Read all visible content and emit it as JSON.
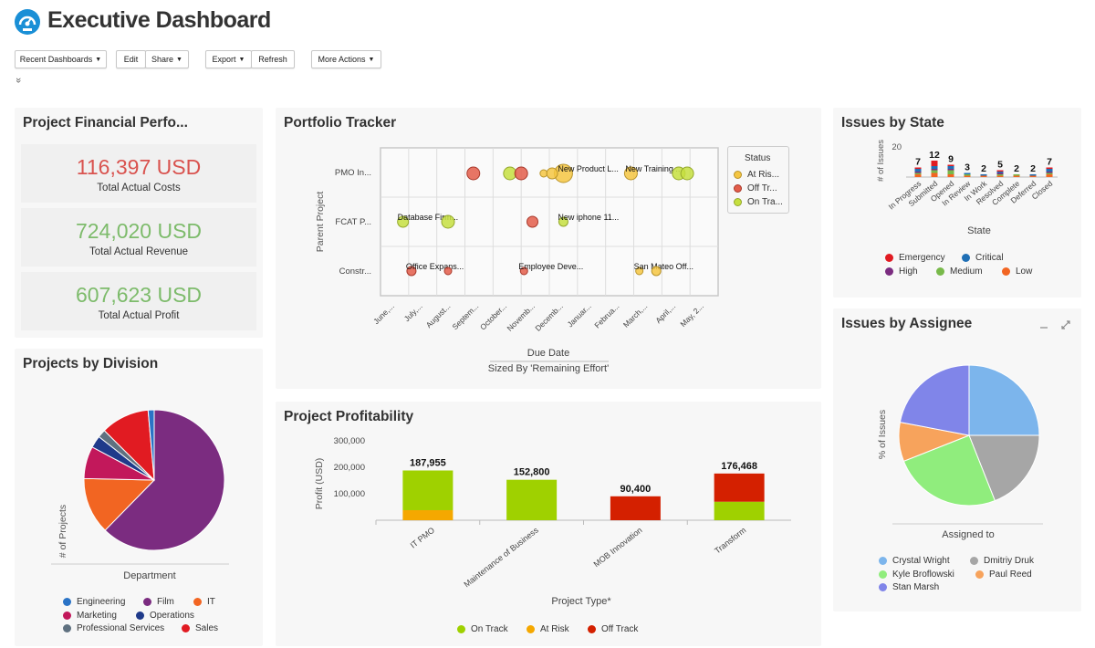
{
  "header": {
    "title": "Executive Dashboard",
    "icon": "gauge-icon"
  },
  "toolbar": {
    "recent": "Recent Dashboards",
    "edit": "Edit",
    "share": "Share",
    "export": "Export",
    "refresh": "Refresh",
    "more": "More Actions",
    "caret": "▼",
    "collapse": "»"
  },
  "financial": {
    "title": "Project Financial Perfo...",
    "kpis": [
      {
        "value": "116,397 USD",
        "label": "Total Actual Costs",
        "color": "#d9534f"
      },
      {
        "value": "724,020 USD",
        "label": "Total Actual Revenue",
        "color": "#7dbb6b"
      },
      {
        "value": "607,623 USD",
        "label": "Total Actual Profit",
        "color": "#7dbb6b"
      }
    ]
  },
  "division": {
    "title": "Projects by Division",
    "ylabel": "# of Projects",
    "xlabel": "Department",
    "legend": [
      {
        "label": "Engineering",
        "color": "#2a73c6"
      },
      {
        "label": "Film",
        "color": "#7b2c80"
      },
      {
        "label": "IT",
        "color": "#f26522"
      },
      {
        "label": "Marketing",
        "color": "#c2185b"
      },
      {
        "label": "Operations",
        "color": "#1f3a8a"
      },
      {
        "label": "Professional Services",
        "color": "#5f7180"
      },
      {
        "label": "Sales",
        "color": "#e11b22"
      }
    ]
  },
  "portfolio": {
    "title": "Portfolio Tracker",
    "ylabel": "Parent Project",
    "xlabel": "Due Date",
    "sizedby": "Sized By 'Remaining Effort'",
    "rows": [
      "PMO In...",
      "FCAT P...",
      "Constr..."
    ],
    "months": [
      "June,...",
      "July,...",
      "August...",
      "Septem...",
      "October...",
      "Novemb...",
      "Decemb...",
      "Januar...",
      "Februa...",
      "March,...",
      "April,...",
      "May, 2..."
    ],
    "labels": [
      "New Product L...",
      "New Training ...",
      "Database Firm...",
      "New iphone 11...",
      "Office Expans...",
      "Employee Deve...",
      "San Mateo Off..."
    ],
    "status": {
      "title": "Status",
      "items": [
        {
          "label": "At Ris...",
          "color": "#f4c542"
        },
        {
          "label": "Off Tr...",
          "color": "#e35d4a"
        },
        {
          "label": "On Tra...",
          "color": "#c5df3f"
        }
      ]
    }
  },
  "profit": {
    "title": "Project Profitability",
    "ylabel": "Profit (USD)",
    "xlabel": "Project Type*",
    "legend": [
      {
        "label": "On Track",
        "color": "#9fd100"
      },
      {
        "label": "At Risk",
        "color": "#f5a800"
      },
      {
        "label": "Off Track",
        "color": "#d42000"
      }
    ]
  },
  "state": {
    "title": "Issues by State",
    "ylabel": "# of Issues",
    "xlabel": "State",
    "ytick": "20",
    "legend": [
      {
        "label": "Emergency",
        "color": "#e11b22"
      },
      {
        "label": "Critical",
        "color": "#1f6fb5"
      },
      {
        "label": "High",
        "color": "#7b2c80"
      },
      {
        "label": "Medium",
        "color": "#78b94a"
      },
      {
        "label": "Low",
        "color": "#f26522"
      }
    ]
  },
  "assignee": {
    "title": "Issues by Assignee",
    "ylabel": "% of Issues",
    "xlabel": "Assigned to",
    "legend": [
      {
        "label": "Crystal Wright",
        "color": "#7cb5ec"
      },
      {
        "label": "Dmitriy Druk",
        "color": "#a6a6a6"
      },
      {
        "label": "Kyle Broflowski",
        "color": "#90ed7d"
      },
      {
        "label": "Paul Reed",
        "color": "#f7a35c"
      },
      {
        "label": "Stan Marsh",
        "color": "#8085e9"
      }
    ]
  },
  "chart_data": [
    {
      "type": "pie",
      "title": "Projects by Division",
      "categories": [
        "Film",
        "IT",
        "Marketing",
        "Operations",
        "Professional Services",
        "Sales",
        "Engineering"
      ],
      "values": [
        67,
        14,
        8,
        3,
        2,
        12,
        1.5
      ],
      "colors": [
        "#7b2c80",
        "#f26522",
        "#c2185b",
        "#1f3a8a",
        "#5f7180",
        "#e11b22",
        "#2a73c6"
      ]
    },
    {
      "type": "scatter",
      "title": "Portfolio Tracker",
      "x_categories": [
        "June,...",
        "July,...",
        "August...",
        "Septem...",
        "October...",
        "Novemb...",
        "Decemb...",
        "Januar...",
        "Februa...",
        "March,...",
        "April,...",
        "May, 2..."
      ],
      "y_categories": [
        "PMO In...",
        "FCAT P...",
        "Constr..."
      ],
      "points": [
        {
          "x": 3.3,
          "y": 0,
          "size": 7,
          "status": "Off Track",
          "label": ""
        },
        {
          "x": 4.6,
          "y": 0,
          "size": 7,
          "status": "On Track",
          "label": ""
        },
        {
          "x": 5.0,
          "y": 0,
          "size": 7,
          "status": "Off Track",
          "label": ""
        },
        {
          "x": 5.8,
          "y": 0,
          "size": 4,
          "status": "At Risk",
          "label": ""
        },
        {
          "x": 6.5,
          "y": 0,
          "size": 10,
          "status": "At Risk",
          "label": "New Product L..."
        },
        {
          "x": 6.1,
          "y": 0,
          "size": 6,
          "status": "At Risk",
          "label": ""
        },
        {
          "x": 8.9,
          "y": 0,
          "size": 7,
          "status": "At Risk",
          "label": "New Training ..."
        },
        {
          "x": 10.6,
          "y": 0,
          "size": 7,
          "status": "On Track",
          "label": ""
        },
        {
          "x": 10.9,
          "y": 0,
          "size": 7,
          "status": "On Track",
          "label": ""
        },
        {
          "x": 0.8,
          "y": 1,
          "size": 6,
          "status": "On Track",
          "label": "Database Firm..."
        },
        {
          "x": 2.4,
          "y": 1,
          "size": 7,
          "status": "On Track",
          "label": ""
        },
        {
          "x": 5.4,
          "y": 1,
          "size": 6,
          "status": "Off Track",
          "label": ""
        },
        {
          "x": 6.5,
          "y": 1,
          "size": 5,
          "status": "On Track",
          "label": "New iphone 11..."
        },
        {
          "x": 1.1,
          "y": 2,
          "size": 5,
          "status": "Off Track",
          "label": "Office Expans..."
        },
        {
          "x": 2.4,
          "y": 2,
          "size": 4,
          "status": "Off Track",
          "label": ""
        },
        {
          "x": 5.1,
          "y": 2,
          "size": 4,
          "status": "Off Track",
          "label": "Employee Deve..."
        },
        {
          "x": 9.2,
          "y": 2,
          "size": 4,
          "status": "At Risk",
          "label": "San Mateo Off..."
        },
        {
          "x": 9.8,
          "y": 2,
          "size": 5,
          "status": "At Risk",
          "label": ""
        }
      ]
    },
    {
      "type": "bar",
      "title": "Project Profitability",
      "categories": [
        "IT PMO",
        "Maintenance of Business",
        "MOB Innovation",
        "Transform"
      ],
      "series": [
        {
          "name": "On Track",
          "color": "#9fd100",
          "values": [
            150000,
            152800,
            0,
            70000
          ]
        },
        {
          "name": "At Risk",
          "color": "#f5a800",
          "values": [
            37955,
            0,
            0,
            0
          ]
        },
        {
          "name": "Off Track",
          "color": "#d42000",
          "values": [
            0,
            0,
            90400,
            106468
          ]
        }
      ],
      "totals": [
        "187,955",
        "152,800",
        "90,400",
        "176,468"
      ],
      "yticks": [
        "100,000",
        "200,000",
        "300,000"
      ],
      "ylim": [
        0,
        300000
      ]
    },
    {
      "type": "bar",
      "title": "Issues by State",
      "categories": [
        "In Progress",
        "Submitted",
        "Opened",
        "In Review",
        "In Work",
        "Resolved",
        "Complete",
        "Deferred",
        "Closed"
      ],
      "totals": [
        7,
        12,
        9,
        3,
        2,
        5,
        2,
        2,
        7
      ],
      "stacks": [
        [
          {
            "color": "#e11b22",
            "v": 1
          },
          {
            "color": "#1f6fb5",
            "v": 2
          },
          {
            "color": "#7b2c80",
            "v": 1
          },
          {
            "color": "#78b94a",
            "v": 1
          },
          {
            "color": "#f26522",
            "v": 2
          }
        ],
        [
          {
            "color": "#e11b22",
            "v": 4
          },
          {
            "color": "#1f6fb5",
            "v": 2
          },
          {
            "color": "#7b2c80",
            "v": 1
          },
          {
            "color": "#78b94a",
            "v": 2
          },
          {
            "color": "#f26522",
            "v": 3
          }
        ],
        [
          {
            "color": "#e11b22",
            "v": 1
          },
          {
            "color": "#1f6fb5",
            "v": 2
          },
          {
            "color": "#7b2c80",
            "v": 1
          },
          {
            "color": "#78b94a",
            "v": 3
          },
          {
            "color": "#f26522",
            "v": 2
          }
        ],
        [
          {
            "color": "#1f6fb5",
            "v": 1
          },
          {
            "color": "#78b94a",
            "v": 1
          },
          {
            "color": "#f26522",
            "v": 1
          }
        ],
        [
          {
            "color": "#1f6fb5",
            "v": 1
          },
          {
            "color": "#f26522",
            "v": 1
          }
        ],
        [
          {
            "color": "#e11b22",
            "v": 1
          },
          {
            "color": "#1f6fb5",
            "v": 1
          },
          {
            "color": "#7b2c80",
            "v": 1
          },
          {
            "color": "#78b94a",
            "v": 1
          },
          {
            "color": "#f26522",
            "v": 1
          }
        ],
        [
          {
            "color": "#78b94a",
            "v": 1
          },
          {
            "color": "#f26522",
            "v": 1
          }
        ],
        [
          {
            "color": "#1f6fb5",
            "v": 1
          },
          {
            "color": "#f26522",
            "v": 1
          }
        ],
        [
          {
            "color": "#e11b22",
            "v": 1
          },
          {
            "color": "#1f6fb5",
            "v": 2
          },
          {
            "color": "#7b2c80",
            "v": 1
          },
          {
            "color": "#78b94a",
            "v": 1
          },
          {
            "color": "#f26522",
            "v": 2
          }
        ]
      ],
      "yticks": [
        "20"
      ]
    },
    {
      "type": "pie",
      "title": "Issues by Assignee",
      "categories": [
        "Crystal Wright",
        "Dmitriy Druk",
        "Kyle Broflowski",
        "Paul Reed",
        "Stan Marsh"
      ],
      "values": [
        25,
        19,
        25,
        9,
        22
      ],
      "colors": [
        "#7cb5ec",
        "#a6a6a6",
        "#90ed7d",
        "#f7a35c",
        "#8085e9"
      ]
    }
  ]
}
